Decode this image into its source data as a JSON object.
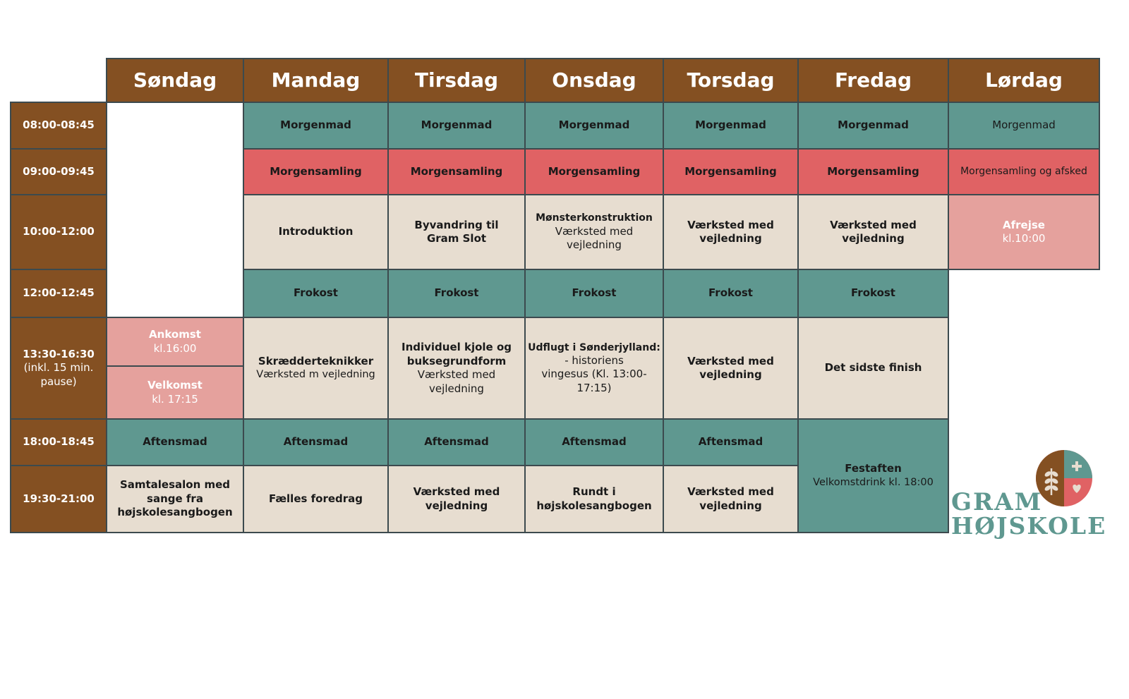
{
  "days": [
    "Søndag",
    "Mandag",
    "Tirsdag",
    "Onsdag",
    "Torsdag",
    "Fredag",
    "Lørdag"
  ],
  "times": [
    {
      "label": "08:00-08:45"
    },
    {
      "label": "09:00-09:45"
    },
    {
      "label": "10:00-12:00"
    },
    {
      "label": "12:00-12:45"
    },
    {
      "label": "13:30-16:30",
      "sub": "(inkl. 15 min. pause)"
    },
    {
      "label": "18:00-18:45"
    },
    {
      "label": "19:30-21:00"
    }
  ],
  "slots": {
    "breakfast": {
      "mandag": "Morgenmad",
      "tirsdag": "Morgenmad",
      "onsdag": "Morgenmad",
      "torsdag": "Morgenmad",
      "fredag": "Morgenmad",
      "lordag": "Morgenmad"
    },
    "assembly": {
      "mandag": "Morgensamling",
      "tirsdag": "Morgensamling",
      "onsdag": "Morgensamling",
      "torsdag": "Morgensamling",
      "fredag": "Morgensamling",
      "lordag": "Morgensamling og afsked"
    },
    "morning": {
      "mandag": {
        "title": "Introduktion"
      },
      "tirsdag": {
        "title": "Byvandring til Gram Slot"
      },
      "onsdag": {
        "title": "Mønsterkonstruktion",
        "sub": "Værksted med vejledning"
      },
      "torsdag": {
        "title": "Værksted med vejledning"
      },
      "fredag": {
        "title": "Værksted med vejledning"
      },
      "lordag": {
        "title": "Afrejse",
        "sub": "kl.10:00"
      }
    },
    "lunch": {
      "mandag": "Frokost",
      "tirsdag": "Frokost",
      "onsdag": "Frokost",
      "torsdag": "Frokost",
      "fredag": "Frokost"
    },
    "afternoon": {
      "sondag_arrival": {
        "title": "Ankomst",
        "sub": "kl.16:00"
      },
      "sondag_welcome": {
        "title": "Velkomst",
        "sub": "kl. 17:15"
      },
      "mandag": {
        "title": "Skrædderteknikker",
        "sub": "Værksted m vejledning"
      },
      "tirsdag": {
        "title": "Individuel kjole og buksegrundform",
        "sub": "Værksted med vejledning"
      },
      "onsdag": {
        "title": "Udflugt i Sønderjylland:",
        "sub": "- historiens vingesus (Kl. 13:00-17:15)"
      },
      "torsdag": {
        "title": "Værksted med vejledning"
      },
      "fredag": {
        "title": "Det sidste finish"
      }
    },
    "dinner": {
      "sondag": "Aftensmad",
      "mandag": "Aftensmad",
      "tirsdag": "Aftensmad",
      "onsdag": "Aftensmad",
      "torsdag": "Aftensmad"
    },
    "evening": {
      "sondag": "Samtalesalon med sange fra højskolesangbogen",
      "mandag": "Fælles foredrag",
      "tirsdag": "Værksted med vejledning",
      "onsdag": "Rundt i højskolesangbogen",
      "torsdag": "Værksted med vejledning",
      "fredag": {
        "title": "Festaften",
        "sub": "Velkomstdrink kl. 18:00"
      }
    }
  },
  "logo": {
    "line1": "GRAM",
    "line2": "HØJSKOLE"
  },
  "colors": {
    "header": "#845022",
    "meal": "#5f9890",
    "assembly": "#e06264",
    "activity": "#e7ddd0",
    "arrival": "#e5a19d"
  }
}
